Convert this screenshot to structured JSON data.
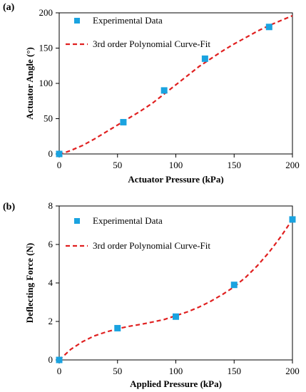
{
  "chart_data": [
    {
      "type": "scatter",
      "panel_label": "(a)",
      "xlabel": "Actuator Pressure  (kPa)",
      "ylabel": "Actuator Angle (°)",
      "xlim": [
        0,
        200
      ],
      "ylim": [
        0,
        200
      ],
      "xticks": [
        0,
        50,
        100,
        150,
        200
      ],
      "yticks": [
        0,
        50,
        100,
        150,
        200
      ],
      "grid": false,
      "legend_position": "top-left",
      "series": [
        {
          "name": "Experimental Data",
          "kind": "markers",
          "color": "#1aa3e0",
          "marker": "square",
          "x": [
            0,
            55,
            90,
            125,
            180
          ],
          "y": [
            0,
            45,
            90,
            135,
            180
          ]
        },
        {
          "name": "3rd order Polynomial Curve-Fit",
          "kind": "dashed-line",
          "color": "#e02020",
          "x": [
            0,
            10,
            20,
            30,
            40,
            50,
            60,
            70,
            80,
            90,
            100,
            110,
            120,
            130,
            140,
            150,
            160,
            170,
            180,
            190,
            200
          ],
          "y": [
            -1,
            5,
            12,
            21,
            31,
            41,
            51,
            61,
            72,
            85,
            98,
            111,
            124,
            135,
            146,
            156,
            165,
            174,
            182,
            189,
            196
          ]
        }
      ]
    },
    {
      "type": "scatter",
      "panel_label": "(b)",
      "xlabel": "Applied Pressure (kPa)",
      "ylabel": "Deflecting Force (N)",
      "xlim": [
        0,
        200
      ],
      "ylim": [
        0,
        8
      ],
      "xticks": [
        0,
        50,
        100,
        150,
        200
      ],
      "yticks": [
        0,
        2,
        4,
        6,
        8
      ],
      "grid": false,
      "legend_position": "top-left",
      "series": [
        {
          "name": "Experimental Data",
          "kind": "markers",
          "color": "#1aa3e0",
          "marker": "square",
          "x": [
            0,
            50,
            100,
            150,
            200
          ],
          "y": [
            0,
            1.65,
            2.25,
            3.9,
            7.3
          ]
        },
        {
          "name": "3rd order Polynomial Curve-Fit",
          "kind": "dashed-line",
          "color": "#e02020",
          "x": [
            0,
            10,
            20,
            30,
            40,
            50,
            60,
            70,
            80,
            90,
            100,
            110,
            120,
            130,
            140,
            150,
            160,
            170,
            180,
            190,
            200
          ],
          "y": [
            0.0,
            0.55,
            0.95,
            1.25,
            1.45,
            1.62,
            1.75,
            1.85,
            1.97,
            2.1,
            2.3,
            2.5,
            2.75,
            3.05,
            3.4,
            3.8,
            4.3,
            4.9,
            5.6,
            6.4,
            7.3
          ]
        }
      ]
    }
  ]
}
